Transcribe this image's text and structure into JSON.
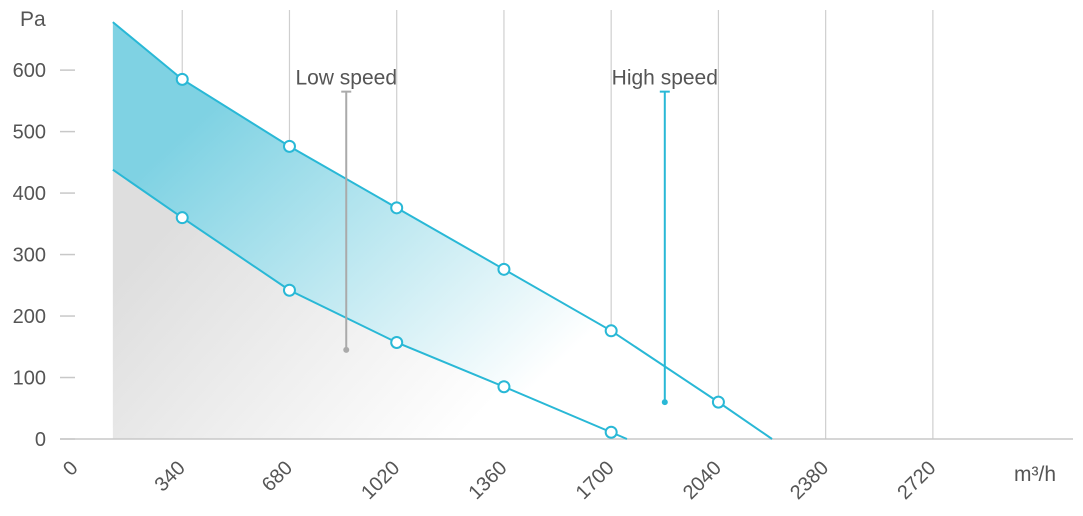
{
  "chart_data": {
    "type": "area",
    "xlabel": "m³/h",
    "ylabel": "Pa",
    "xlim": [
      0,
      2900
    ],
    "ylim": [
      0,
      680
    ],
    "x_ticks": [
      "0",
      "340",
      "680",
      "1020",
      "1360",
      "1700",
      "2040",
      "2380",
      "2720"
    ],
    "y_ticks": [
      "0",
      "100",
      "200",
      "300",
      "400",
      "500",
      "600"
    ],
    "grid": "vertical",
    "series": [
      {
        "name": "High speed",
        "color": "#29b8d6",
        "x": [
          120,
          340,
          680,
          1020,
          1360,
          1700,
          2040,
          2210
        ],
        "y": [
          678,
          585,
          476,
          376,
          276,
          176,
          60,
          0
        ],
        "markers_x": [
          340,
          680,
          1020,
          1360,
          1700,
          2040
        ]
      },
      {
        "name": "Low speed",
        "color": "#29b8d6",
        "x": [
          120,
          340,
          680,
          1020,
          1360,
          1700,
          1750
        ],
        "y": [
          438,
          360,
          242,
          157,
          85,
          11,
          0
        ],
        "markers_x": [
          340,
          680,
          1020,
          1360,
          1700
        ]
      }
    ],
    "annotations": [
      {
        "text": "Low speed",
        "x": 860,
        "y": 565,
        "point_y": 145,
        "color": "#aaaaaa"
      },
      {
        "text": "High speed",
        "x": 1870,
        "y": 565,
        "point_y": 60,
        "color": "#29b8d6"
      }
    ]
  }
}
